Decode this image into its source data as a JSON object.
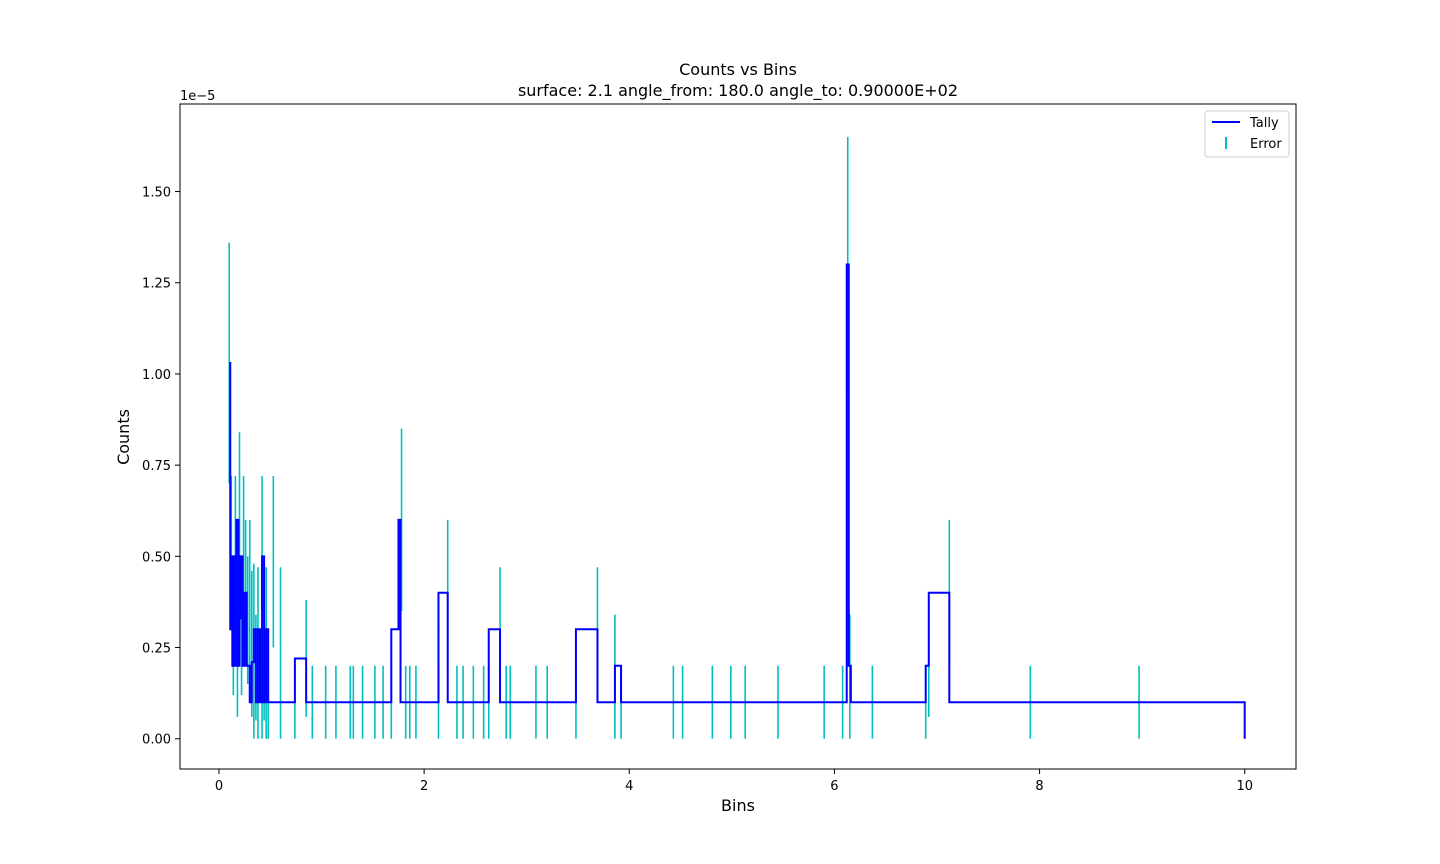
{
  "chart_data": {
    "type": "line",
    "title": "Counts vs Bins",
    "subtitle": "surface: 2.1 angle_from: 180.0 angle_to: 0.90000E+02",
    "xlabel": "Bins",
    "ylabel": "Counts",
    "y_offset_label": "1e−5",
    "xlim": [
      -0.38,
      10.5
    ],
    "ylim": [
      -0.083,
      1.74
    ],
    "y_scale_factor": 1e-05,
    "x_ticks": [
      0,
      2,
      4,
      6,
      8,
      10
    ],
    "x_tick_labels": [
      "0",
      "2",
      "4",
      "6",
      "8",
      "10"
    ],
    "y_ticks": [
      0.0,
      0.25,
      0.5,
      0.75,
      1.0,
      1.25,
      1.5
    ],
    "y_tick_labels": [
      "0.00",
      "0.25",
      "0.50",
      "0.75",
      "1.00",
      "1.25",
      "1.50"
    ],
    "grid": false,
    "legend_position": "top-right",
    "colors": {
      "tally": "#0000ff",
      "error": "#00bfbf"
    },
    "series": [
      {
        "name": "Tally",
        "style": "step",
        "x": [
          0.1,
          0.11,
          0.12,
          0.13,
          0.14,
          0.15,
          0.17,
          0.19,
          0.2,
          0.21,
          0.23,
          0.25,
          0.27,
          0.3,
          0.32,
          0.34,
          0.36,
          0.38,
          0.4,
          0.42,
          0.44,
          0.46,
          0.48,
          0.53,
          0.6,
          0.74,
          0.85,
          0.91,
          1.04,
          1.14,
          1.28,
          1.31,
          1.4,
          1.52,
          1.6,
          1.68,
          1.75,
          1.77,
          1.79,
          1.82,
          1.86,
          1.92,
          2.14,
          2.23,
          2.32,
          2.38,
          2.48,
          2.58,
          2.63,
          2.74,
          2.8,
          2.84,
          3.09,
          3.2,
          3.48,
          3.69,
          3.86,
          3.92,
          4.43,
          4.52,
          4.81,
          4.99,
          5.13,
          5.45,
          5.9,
          6.08,
          6.12,
          6.14,
          6.16,
          6.37,
          6.89,
          6.92,
          7.12,
          7.91,
          8.97,
          10.0
        ],
        "values": [
          1.03,
          0.3,
          0.5,
          0.2,
          0.5,
          0.2,
          0.6,
          0.2,
          0.33,
          0.5,
          0.2,
          0.4,
          0.2,
          0.1,
          0.21,
          0.3,
          0.1,
          0.3,
          0.1,
          0.5,
          0.1,
          0.3,
          0.1,
          0.1,
          0.1,
          0.22,
          0.1,
          0.1,
          0.1,
          0.1,
          0.1,
          0.1,
          0.1,
          0.1,
          0.1,
          0.3,
          0.6,
          0.1,
          0.1,
          0.1,
          0.1,
          0.1,
          0.4,
          0.1,
          0.1,
          0.1,
          0.1,
          0.1,
          0.3,
          0.1,
          0.1,
          0.1,
          0.1,
          0.1,
          0.3,
          0.1,
          0.2,
          0.1,
          0.1,
          0.1,
          0.1,
          0.1,
          0.1,
          0.1,
          0.1,
          0.1,
          1.3,
          0.2,
          0.1,
          0.1,
          0.2,
          0.4,
          0.1,
          0.1,
          0.1,
          0.0
        ]
      },
      {
        "name": "Error",
        "style": "errorbar",
        "x": [
          0.1,
          0.12,
          0.14,
          0.16,
          0.18,
          0.2,
          0.22,
          0.24,
          0.26,
          0.28,
          0.3,
          0.32,
          0.34,
          0.36,
          0.38,
          0.4,
          0.42,
          0.44,
          0.46,
          0.48,
          0.53,
          0.6,
          0.74,
          0.85,
          0.91,
          1.04,
          1.14,
          1.28,
          1.31,
          1.4,
          1.52,
          1.6,
          1.68,
          1.75,
          1.78,
          1.82,
          1.86,
          1.92,
          2.14,
          2.23,
          2.32,
          2.38,
          2.48,
          2.58,
          2.63,
          2.74,
          2.8,
          2.84,
          3.09,
          3.2,
          3.48,
          3.69,
          3.86,
          3.92,
          4.43,
          4.52,
          4.81,
          4.99,
          5.13,
          5.45,
          5.9,
          6.08,
          6.13,
          6.15,
          6.37,
          6.89,
          6.92,
          7.12,
          7.91,
          8.97
        ],
        "low": [
          0.7,
          0.3,
          0.12,
          0.2,
          0.06,
          0.2,
          0.12,
          0.25,
          0.2,
          0.15,
          0.15,
          0.06,
          0.0,
          0.05,
          0.0,
          0.1,
          0.0,
          0.05,
          0.0,
          0.0,
          0.25,
          0.0,
          0.0,
          0.06,
          0.0,
          0.0,
          0.0,
          0.0,
          0.0,
          0.0,
          0.0,
          0.0,
          0.0,
          0.3,
          0.35,
          0.0,
          0.0,
          0.0,
          0.0,
          0.2,
          0.0,
          0.0,
          0.0,
          0.0,
          0.0,
          0.12,
          0.0,
          0.0,
          0.0,
          0.0,
          0.0,
          0.12,
          0.0,
          0.0,
          0.0,
          0.0,
          0.0,
          0.0,
          0.0,
          0.0,
          0.0,
          0.0,
          0.95,
          0.0,
          0.0,
          0.0,
          0.06,
          0.2,
          0.0,
          0.0
        ],
        "high": [
          1.36,
          0.72,
          0.5,
          0.72,
          0.35,
          0.84,
          0.5,
          0.72,
          0.6,
          0.5,
          0.6,
          0.46,
          0.48,
          0.34,
          0.47,
          0.3,
          0.72,
          0.2,
          0.47,
          0.2,
          0.72,
          0.47,
          0.2,
          0.38,
          0.2,
          0.2,
          0.2,
          0.2,
          0.2,
          0.2,
          0.2,
          0.2,
          0.2,
          0.47,
          0.85,
          0.2,
          0.2,
          0.2,
          0.2,
          0.6,
          0.2,
          0.2,
          0.2,
          0.2,
          0.2,
          0.47,
          0.2,
          0.2,
          0.2,
          0.2,
          0.2,
          0.47,
          0.34,
          0.2,
          0.2,
          0.2,
          0.2,
          0.2,
          0.2,
          0.2,
          0.2,
          0.2,
          1.65,
          0.34,
          0.2,
          0.2,
          0.34,
          0.6,
          0.2,
          0.2
        ]
      }
    ]
  }
}
